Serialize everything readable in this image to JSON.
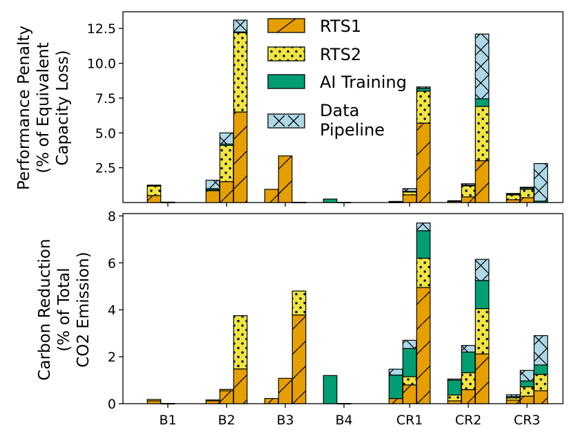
{
  "chart_data": {
    "type": "bar",
    "stacked": true,
    "layout": "two vertically stacked panels sharing the x axis; each group has 3 stacked bars",
    "categories": [
      "B1",
      "B2",
      "B3",
      "B4",
      "CR1",
      "CR2",
      "CR3"
    ],
    "bars_per_category": 3,
    "legend": {
      "placement": "top-center of upper panel",
      "entries": [
        {
          "key": "rts1",
          "label": "RTS1"
        },
        {
          "key": "rts2",
          "label": "RTS2"
        },
        {
          "key": "ai",
          "label": "AI Training"
        },
        {
          "key": "dp",
          "label": "Data Pipeline"
        }
      ]
    },
    "series_styles": {
      "rts1": {
        "color": "#E69F00",
        "hatch": "diagonal"
      },
      "rts2": {
        "color": "#F0E442",
        "hatch": "dots"
      },
      "ai": {
        "color": "#009E73",
        "hatch": "none"
      },
      "dp": {
        "color": "#ADD8E6",
        "hatch": "cross"
      }
    },
    "panels": [
      {
        "ylabel": [
          "Performance Penalty",
          "(% of Equivalent",
          "Capacity Loss)"
        ],
        "ylim": [
          0,
          13.7
        ],
        "yticks": [
          2.5,
          5.0,
          7.5,
          10.0,
          12.5
        ],
        "ytick_labels": [
          "2.5",
          "5.0",
          "7.5",
          "10.0",
          "12.5"
        ],
        "bars": [
          [
            {
              "rts1": 0.5,
              "rts2": 0.7,
              "ai": 0.02,
              "dp": 0.03
            },
            {
              "rts1": 0.02,
              "rts2": 0.01,
              "ai": 0.0,
              "dp": 0.0
            },
            {
              "rts1": 0.0,
              "rts2": 0.0,
              "ai": 0.0,
              "dp": 0.0
            }
          ],
          [
            {
              "rts1": 0.85,
              "rts2": 0.05,
              "ai": 0.1,
              "dp": 0.6
            },
            {
              "rts1": 1.5,
              "rts2": 2.6,
              "ai": 0.1,
              "dp": 0.8
            },
            {
              "rts1": 6.5,
              "rts2": 5.7,
              "ai": 0.05,
              "dp": 0.85
            }
          ],
          [
            {
              "rts1": 0.95,
              "rts2": 0.0,
              "ai": 0.0,
              "dp": 0.0
            },
            {
              "rts1": 3.35,
              "rts2": 0.0,
              "ai": 0.0,
              "dp": 0.0
            },
            {
              "rts1": 0.02,
              "rts2": 0.0,
              "ai": 0.0,
              "dp": 0.0
            }
          ],
          [
            {
              "rts1": 0.0,
              "rts2": 0.0,
              "ai": 0.25,
              "dp": 0.0
            },
            {
              "rts1": 0.0,
              "rts2": 0.0,
              "ai": 0.02,
              "dp": 0.0
            },
            {
              "rts1": 0.0,
              "rts2": 0.0,
              "ai": 0.0,
              "dp": 0.0
            }
          ],
          [
            {
              "rts1": 0.03,
              "rts2": 0.0,
              "ai": 0.02,
              "dp": 0.03
            },
            {
              "rts1": 0.55,
              "rts2": 0.2,
              "ai": 0.05,
              "dp": 0.2
            },
            {
              "rts1": 5.7,
              "rts2": 2.3,
              "ai": 0.2,
              "dp": 0.1
            }
          ],
          [
            {
              "rts1": 0.08,
              "rts2": 0.03,
              "ai": 0.0,
              "dp": 0.02
            },
            {
              "rts1": 0.4,
              "rts2": 0.8,
              "ai": 0.05,
              "dp": 0.1
            },
            {
              "rts1": 3.0,
              "rts2": 3.9,
              "ai": 0.55,
              "dp": 4.65
            }
          ],
          [
            {
              "rts1": 0.2,
              "rts2": 0.35,
              "ai": 0.05,
              "dp": 0.05
            },
            {
              "rts1": 0.35,
              "rts2": 0.6,
              "ai": 0.1,
              "dp": 0.05
            },
            {
              "rts1": 0.0,
              "rts2": 0.0,
              "ai": 0.1,
              "dp": 2.7
            }
          ]
        ]
      },
      {
        "ylabel": [
          "Carbon Reduction",
          "(% of Total",
          "CO2 Emission)"
        ],
        "ylim": [
          0,
          8.1
        ],
        "yticks": [
          0,
          2,
          4,
          6,
          8
        ],
        "ytick_labels": [
          "0",
          "2",
          "4",
          "6",
          "8"
        ],
        "bars": [
          [
            {
              "rts1": 0.12,
              "rts2": 0.06,
              "ai": 0.0,
              "dp": 0.0
            },
            {
              "rts1": 0.01,
              "rts2": 0.0,
              "ai": 0.0,
              "dp": 0.0
            },
            {
              "rts1": 0.0,
              "rts2": 0.0,
              "ai": 0.0,
              "dp": 0.0
            }
          ],
          [
            {
              "rts1": 0.12,
              "rts2": 0.04,
              "ai": 0.0,
              "dp": 0.0
            },
            {
              "rts1": 0.55,
              "rts2": 0.06,
              "ai": 0.0,
              "dp": 0.0
            },
            {
              "rts1": 1.48,
              "rts2": 2.27,
              "ai": 0.0,
              "dp": 0.0
            }
          ],
          [
            {
              "rts1": 0.22,
              "rts2": 0.0,
              "ai": 0.0,
              "dp": 0.0
            },
            {
              "rts1": 1.08,
              "rts2": 0.0,
              "ai": 0.0,
              "dp": 0.0
            },
            {
              "rts1": 3.78,
              "rts2": 1.02,
              "ai": 0.0,
              "dp": 0.0
            }
          ],
          [
            {
              "rts1": 0.0,
              "rts2": 0.0,
              "ai": 1.2,
              "dp": 0.0
            },
            {
              "rts1": 0.0,
              "rts2": 0.0,
              "ai": 0.01,
              "dp": 0.0
            },
            {
              "rts1": 0.0,
              "rts2": 0.0,
              "ai": 0.0,
              "dp": 0.0
            }
          ],
          [
            {
              "rts1": 0.22,
              "rts2": 0.0,
              "ai": 1.0,
              "dp": 0.25
            },
            {
              "rts1": 0.8,
              "rts2": 0.35,
              "ai": 1.2,
              "dp": 0.35
            },
            {
              "rts1": 4.95,
              "rts2": 1.25,
              "ai": 1.17,
              "dp": 0.33
            }
          ],
          [
            {
              "rts1": 0.12,
              "rts2": 0.25,
              "ai": 0.63,
              "dp": 0.05
            },
            {
              "rts1": 0.6,
              "rts2": 0.72,
              "ai": 0.88,
              "dp": 0.28
            },
            {
              "rts1": 2.12,
              "rts2": 1.93,
              "ai": 1.2,
              "dp": 0.9
            }
          ],
          [
            {
              "rts1": 0.15,
              "rts2": 0.1,
              "ai": 0.05,
              "dp": 0.08
            },
            {
              "rts1": 0.32,
              "rts2": 0.4,
              "ai": 0.25,
              "dp": 0.45
            },
            {
              "rts1": 0.55,
              "rts2": 0.7,
              "ai": 0.4,
              "dp": 1.25
            }
          ]
        ]
      }
    ]
  }
}
